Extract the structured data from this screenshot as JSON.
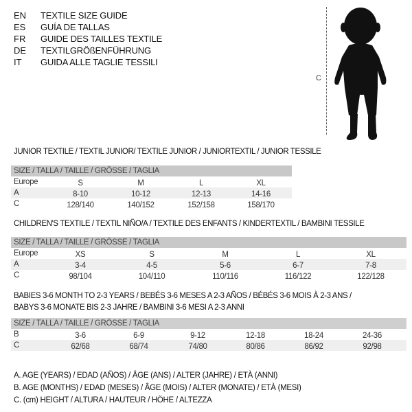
{
  "languages": [
    {
      "code": "EN",
      "title": "TEXTILE SIZE GUIDE"
    },
    {
      "code": "ES",
      "title": "GUÍA DE TALLAS"
    },
    {
      "code": "FR",
      "title": "GUIDE DES TAILLES TEXTILE"
    },
    {
      "code": "DE",
      "title": "TEXTILGRÖßENFÜHRUNG"
    },
    {
      "code": "IT",
      "title": "GUIDA ALLE TAGLIE TESSILI"
    }
  ],
  "figure": {
    "height_label": "C",
    "icon": "child-silhouette-icon"
  },
  "tables": [
    {
      "title": "JUNIOR TEXTILE / TEXTIL JUNIOR/ TEXTILE JUNIOR / JUNIORTEXTIL / JUNIOR TESSILE",
      "header": "SIZE / TALLA / TAILLE / GRÖSSE / TAGLIA",
      "rows": [
        {
          "label": "Europe",
          "cells": [
            "S",
            "M",
            "L",
            "XL"
          ]
        },
        {
          "label": "A",
          "cells": [
            "8-10",
            "10-12",
            "12-13",
            "14-16"
          ]
        },
        {
          "label": "C",
          "cells": [
            "128/140",
            "140/152",
            "152/158",
            "158/170"
          ]
        }
      ]
    },
    {
      "title": "CHILDREN'S TEXTILE / TEXTIL NIÑO/A / TEXTILE DES ENFANTS / KINDERTEXTIL / BAMBINI TESSILE",
      "header": "SIZE / TALLA / TAILLE / GRÖSSE / TAGLIA",
      "rows": [
        {
          "label": "Europe",
          "cells": [
            "XS",
            "S",
            "M",
            "L",
            "XL"
          ]
        },
        {
          "label": "A",
          "cells": [
            "3-4",
            "4-5",
            "5-6",
            "6-7",
            "7-8"
          ]
        },
        {
          "label": "C",
          "cells": [
            "98/104",
            "104/110",
            "110/116",
            "116/122",
            "122/128"
          ]
        }
      ]
    },
    {
      "title": "BABIES 3-6 MONTH TO 2-3 YEARS / BEBÉS 3-6 MESES A 2-3 AÑOS / BÉBÉS 3-6 MOIS À 2-3 ANS /",
      "title2": "BABYS 3-6 MONATE BIS 2-3 JAHRE / BAMBINI 3-6 MESI A 2-3 ANNI",
      "header": "SIZE / TALLA / TAILLE / GRÖSSE / TAGLIA",
      "rows": [
        {
          "label": "B",
          "cells": [
            "3-6",
            "6-9",
            "9-12",
            "12-18",
            "18-24",
            "24-36"
          ]
        },
        {
          "label": "C",
          "cells": [
            "62/68",
            "68/74",
            "74/80",
            "80/86",
            "86/92",
            "92/98"
          ]
        }
      ]
    }
  ],
  "legend": [
    "A. AGE (YEARS) / EDAD (AÑOS) / ÂGE (ANS) / ALTER (JAHRE) / ETÀ (ANNI)",
    "B. AGE (MONTHS) / EDAD (MESES) / ÂGE (MOIS) / ALTER (MONATE) / ETÀ (MESI)",
    "C. (cm) HEIGHT / ALTURA / HAUTEUR / HÖHE / ALTEZZA"
  ]
}
